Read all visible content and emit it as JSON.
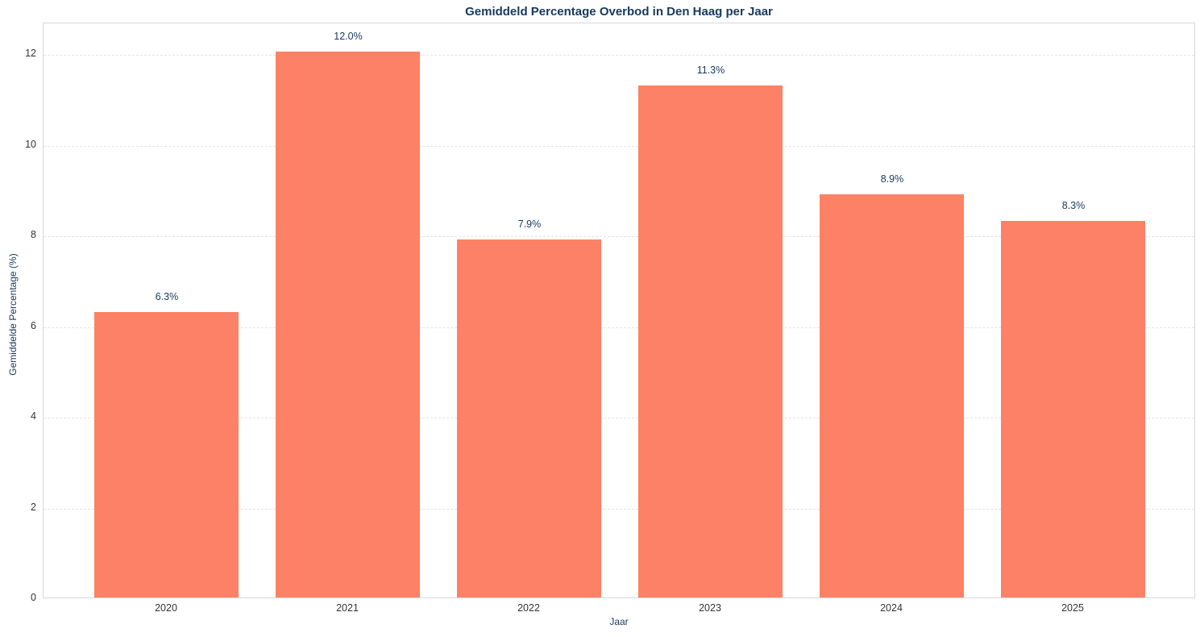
{
  "figure": {
    "background_color": "#FFFFFF",
    "accent_text_color": "#17395C",
    "tick_text_color": "#333333",
    "grid_color": "#E4E4EC",
    "plot_border_color": "#D8D8DE"
  },
  "chart_data": {
    "type": "bar",
    "title": "Gemiddeld Percentage Overbod in Den Haag per Jaar",
    "xlabel": "Jaar",
    "ylabel": "Gemiddelde Percentage (%)",
    "categories": [
      "2020",
      "2021",
      "2022",
      "2023",
      "2024",
      "2025"
    ],
    "values": [
      6.3,
      12.05,
      7.9,
      11.3,
      8.9,
      8.3
    ],
    "bar_labels": [
      "6.3%",
      "12.0%",
      "7.9%",
      "11.3%",
      "8.9%",
      "8.3%"
    ],
    "ylim": [
      0,
      12.7
    ],
    "yticks": [
      0,
      2,
      4,
      6,
      8,
      10,
      12
    ],
    "grid": "horizontal-dashed",
    "legend": "none",
    "bar_color": "#FD8166"
  }
}
